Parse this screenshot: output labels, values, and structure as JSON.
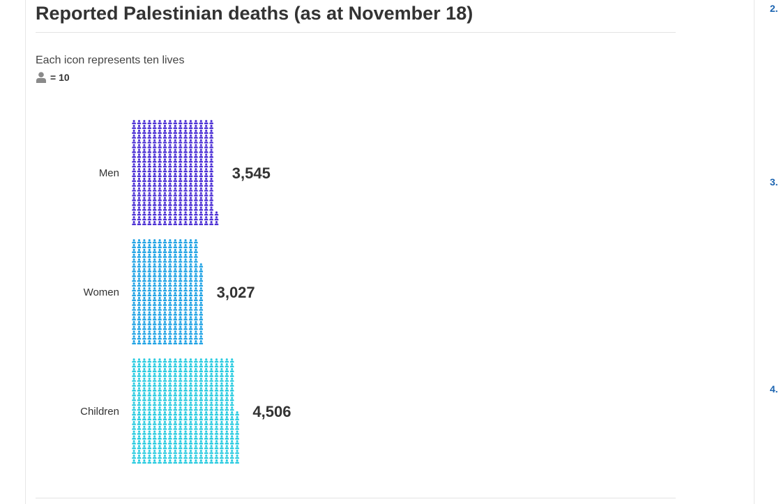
{
  "chart_data": {
    "type": "bar",
    "title": "Reported Palestinian deaths (as at November 18)",
    "subtitle": "Each icon represents ten lives",
    "legend_value": "= 10",
    "unit_per_icon": 10,
    "categories": [
      "Men",
      "Women",
      "Children"
    ],
    "values": [
      3545,
      3027,
      4506
    ],
    "value_labels": [
      "3,545",
      "3,027",
      "4,506"
    ],
    "colors": [
      "#4b2fd4",
      "#1fa2e4",
      "#29cbe0"
    ],
    "legend_icon_color": "#8a8a8a"
  },
  "sidebar": {
    "numbers": [
      "2.",
      "3.",
      "4."
    ]
  }
}
